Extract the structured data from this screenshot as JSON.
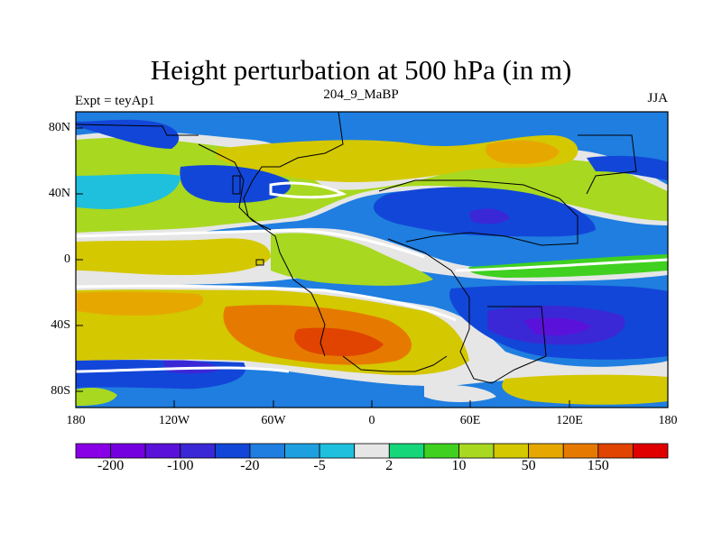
{
  "title": "Height perturbation at 500 hPa (in m)",
  "left_label": "Expt = teyAp1",
  "center_label": "204_9_MaBP",
  "right_label": "JJA",
  "map": {
    "projection": "cylindrical-equidistant",
    "lon_range": [
      -180,
      180
    ],
    "lat_range": [
      -90,
      90
    ],
    "lat_tick_labels": [
      "80N",
      "40N",
      "0",
      "40S",
      "80S"
    ],
    "lon_tick_labels": [
      "180",
      "120W",
      "60W",
      "0",
      "60E",
      "120E",
      "180"
    ],
    "field": "height perturbation at 500 hPa",
    "units": "m"
  },
  "colorbar": {
    "colors": [
      "#8a00e6",
      "#7400e0",
      "#5a12da",
      "#3a28d6",
      "#1246d8",
      "#1f7ee0",
      "#1ea0e0",
      "#1ec0de",
      "#e6e6e6",
      "#16d67a",
      "#40d020",
      "#a8d820",
      "#d4c800",
      "#e6a800",
      "#e67a00",
      "#e04400",
      "#e00000"
    ],
    "labels": [
      "-200",
      "-100",
      "-20",
      "-5",
      "2",
      "10",
      "50",
      "150"
    ]
  }
}
